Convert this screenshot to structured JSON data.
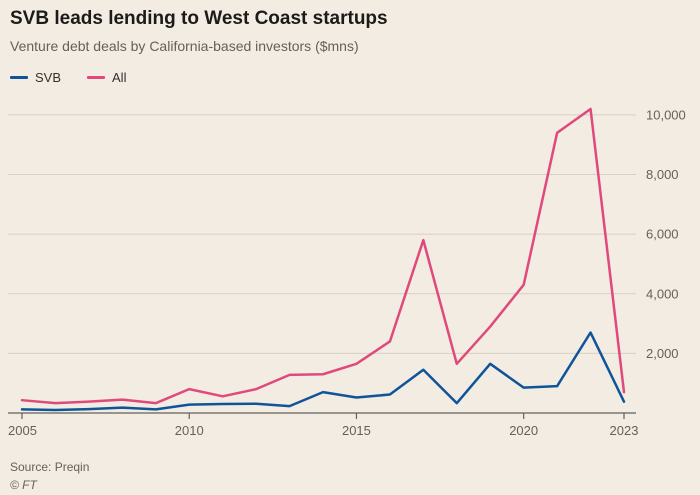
{
  "header": {
    "title": "SVB leads lending to West Coast startups",
    "subtitle": "Venture debt deals by California-based investors ($mns)"
  },
  "footer": {
    "source": "Source: Preqin",
    "credit": "© FT"
  },
  "colors": {
    "background": "#f2ece2",
    "gridline": "#d8d0c6",
    "baseline": "#66605c",
    "svb_blue": "#0f5499",
    "all_pink": "#e0497c",
    "text_muted": "#66605c"
  },
  "chart_data": {
    "type": "line",
    "x": [
      2005,
      2006,
      2007,
      2008,
      2009,
      2010,
      2011,
      2012,
      2013,
      2014,
      2015,
      2016,
      2017,
      2018,
      2019,
      2020,
      2021,
      2022,
      2023
    ],
    "series": [
      {
        "name": "SVB",
        "color": "#0f5499",
        "values": [
          120,
          100,
          130,
          180,
          120,
          280,
          300,
          310,
          230,
          700,
          520,
          620,
          1450,
          330,
          1650,
          850,
          900,
          2700,
          380
        ]
      },
      {
        "name": "All",
        "color": "#e0497c",
        "values": [
          430,
          330,
          380,
          450,
          330,
          800,
          560,
          800,
          1280,
          1300,
          1650,
          2400,
          5800,
          1650,
          2900,
          4300,
          9400,
          10200,
          700
        ]
      }
    ],
    "title": "SVB leads lending to West Coast startups",
    "subtitle": "Venture debt deals by California-based investors ($mns)",
    "xlabel": "",
    "ylabel": "",
    "ylim": [
      0,
      10400
    ],
    "yticks": [
      2000,
      4000,
      6000,
      8000,
      10000
    ],
    "xticks": [
      2005,
      2010,
      2015,
      2020,
      2023
    ],
    "grid": true,
    "legend_position": "top-left",
    "y_axis_side": "right"
  }
}
